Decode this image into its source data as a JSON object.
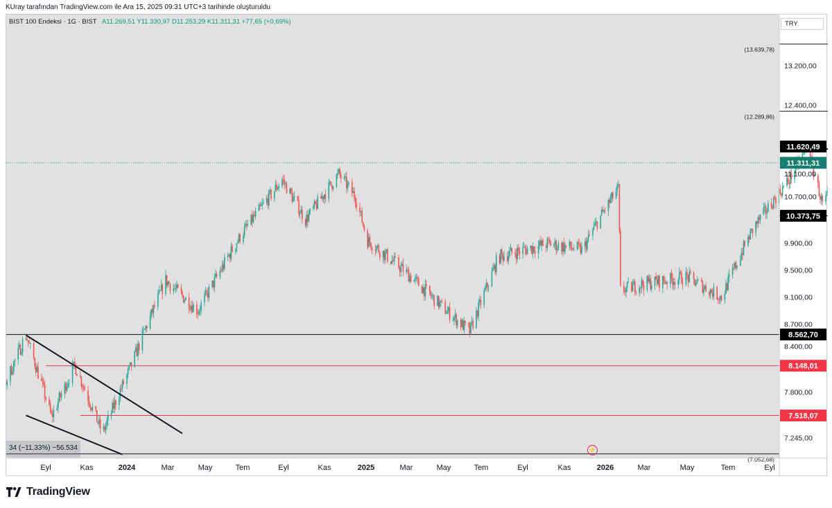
{
  "header": {
    "credit": "KUray tarafından TradingView.com ile Ara 15, 2025 09:31 UTC+3 tarihinde oluşturuldu"
  },
  "infobar": {
    "symbol": "BIST 100 Endeksi · 1G · BIST",
    "ohlc": "A11.269,51  Y11.330,97  D11.253,29  K11.311,31  +77,65 (+0,69%)"
  },
  "currency": "TRY",
  "branding": {
    "logo_text": "TradingView"
  },
  "measure": {
    "text": "34 (−11,33%) −56.534"
  },
  "colors": {
    "background": "#e1e1e1",
    "up": "#26a69a",
    "down": "#ef5350",
    "line": "#131722",
    "red_level": "#f23645",
    "last_price": "#177d6e"
  },
  "chart_data": {
    "type": "candlestick",
    "symbol": "BIST 100 Endeksi",
    "interval": "1G",
    "exchange": "BIST",
    "last_price": 11311.31,
    "y_tick_labels": [
      "7.245,00",
      "7.800,00",
      "8.400,00",
      "8.700,00",
      "9.100,00",
      "9.500,00",
      "9.900,00",
      "10.700,00",
      "11.100,00",
      "12.400,00",
      "13.200,00"
    ],
    "y_tick_values": [
      7245,
      7800,
      8400,
      8700,
      9100,
      9500,
      9900,
      10700,
      11100,
      12400,
      13200
    ],
    "x_tick_labels": [
      {
        "label": "Eyl",
        "bold": false
      },
      {
        "label": "Kas",
        "bold": false
      },
      {
        "label": "2024",
        "bold": true
      },
      {
        "label": "Mar",
        "bold": false
      },
      {
        "label": "May",
        "bold": false
      },
      {
        "label": "Tem",
        "bold": false
      },
      {
        "label": "Eyl",
        "bold": false
      },
      {
        "label": "Kas",
        "bold": false
      },
      {
        "label": "2025",
        "bold": true
      },
      {
        "label": "Mar",
        "bold": false
      },
      {
        "label": "May",
        "bold": false
      },
      {
        "label": "Tem",
        "bold": false
      },
      {
        "label": "Eyl",
        "bold": false
      },
      {
        "label": "Kas",
        "bold": false
      },
      {
        "label": "2026",
        "bold": true
      },
      {
        "label": "Mar",
        "bold": false
      },
      {
        "label": "May",
        "bold": false
      },
      {
        "label": "Tem",
        "bold": false
      },
      {
        "label": "Eyl",
        "bold": false
      }
    ],
    "price_axis_badges": [
      {
        "label": "11.620,49",
        "value": 11620.49,
        "style": "black"
      },
      {
        "label": "11.311,31",
        "value": 11311.31,
        "style": "last"
      },
      {
        "label": "10.373,75",
        "value": 10373.75,
        "style": "black"
      },
      {
        "label": "8.562,70",
        "value": 8562.7,
        "style": "black"
      },
      {
        "label": "8.148,01",
        "value": 8148.01,
        "style": "red"
      },
      {
        "label": "7.518,07",
        "value": 7518.07,
        "style": "red"
      }
    ],
    "level_annotations": [
      {
        "label": "(13.639,78)",
        "value": 13639.78
      },
      {
        "label": "(12.289,86)",
        "value": 12289.86
      },
      {
        "label": "(7.052,68)",
        "value": 7052.68
      }
    ],
    "anchors": [
      {
        "date": "2023-08-10",
        "close": 7245
      },
      {
        "date": "2023-09-10",
        "close": 7800
      },
      {
        "date": "2023-10-02",
        "close": 8555
      },
      {
        "date": "2023-10-25",
        "close": 7500
      },
      {
        "date": "2023-11-15",
        "close": 8150
      },
      {
        "date": "2023-12-10",
        "close": 7300
      },
      {
        "date": "2024-01-05",
        "close": 8150
      },
      {
        "date": "2024-02-05",
        "close": 9350
      },
      {
        "date": "2024-03-05",
        "close": 8900
      },
      {
        "date": "2024-04-15",
        "close": 10100
      },
      {
        "date": "2024-05-20",
        "close": 11000
      },
      {
        "date": "2024-06-10",
        "close": 10300
      },
      {
        "date": "2024-07-10",
        "close": 11100
      },
      {
        "date": "2024-07-25",
        "close": 10700
      },
      {
        "date": "2024-08-05",
        "close": 9950
      },
      {
        "date": "2024-09-10",
        "close": 9450
      },
      {
        "date": "2024-10-15",
        "close": 8900
      },
      {
        "date": "2024-11-05",
        "close": 8600
      },
      {
        "date": "2024-12-01",
        "close": 9700
      },
      {
        "date": "2025-01-15",
        "close": 9900
      },
      {
        "date": "2025-02-15",
        "close": 9800
      },
      {
        "date": "2025-03-01",
        "close": 10300
      },
      {
        "date": "2025-03-19",
        "close": 10850
      },
      {
        "date": "2025-03-21",
        "close": 9200
      },
      {
        "date": "2025-04-10",
        "close": 9300
      },
      {
        "date": "2025-05-20",
        "close": 9400
      },
      {
        "date": "2025-06-20",
        "close": 9100
      },
      {
        "date": "2025-07-20",
        "close": 10200
      },
      {
        "date": "2025-08-20",
        "close": 11000
      },
      {
        "date": "2025-09-05",
        "close": 11600
      },
      {
        "date": "2025-09-20",
        "close": 10500
      },
      {
        "date": "2025-10-05",
        "close": 11500
      },
      {
        "date": "2025-10-25",
        "close": 10100
      },
      {
        "date": "2025-11-15",
        "close": 11100
      },
      {
        "date": "2025-11-25",
        "close": 10400
      },
      {
        "date": "2025-12-15",
        "close": 11311.31
      }
    ],
    "drawings": [
      {
        "kind": "hline",
        "start": "2025-11-20",
        "value": 13639.78
      },
      {
        "kind": "hline",
        "start": "2025-11-20",
        "value": 12289.86
      },
      {
        "kind": "hline",
        "start": "2025-08-20",
        "value": 11620.49
      },
      {
        "kind": "hline",
        "start": "2025-11-20",
        "value": 10373.75
      },
      {
        "kind": "hline",
        "start": "2023-08-01",
        "value": 8562.7
      },
      {
        "kind": "hline_red",
        "start": "2023-10-20",
        "value": 8148.01
      },
      {
        "kind": "hline_red",
        "start": "2023-11-20",
        "value": 7518.07
      },
      {
        "kind": "hline",
        "start": "2023-08-01",
        "value": 7052.68
      },
      {
        "kind": "trend",
        "from": {
          "date": "2023-10-02",
          "value": 8555
        },
        "to": {
          "date": "2024-02-20",
          "value": 7300
        }
      },
      {
        "kind": "trend",
        "from": {
          "date": "2023-10-02",
          "value": 7520
        },
        "to": {
          "date": "2023-12-28",
          "value": 7045
        }
      },
      {
        "kind": "trend",
        "from": {
          "date": "2025-08-20",
          "value": 11620
        },
        "to": {
          "date": "2026-01-10",
          "value": 11420
        }
      }
    ]
  }
}
